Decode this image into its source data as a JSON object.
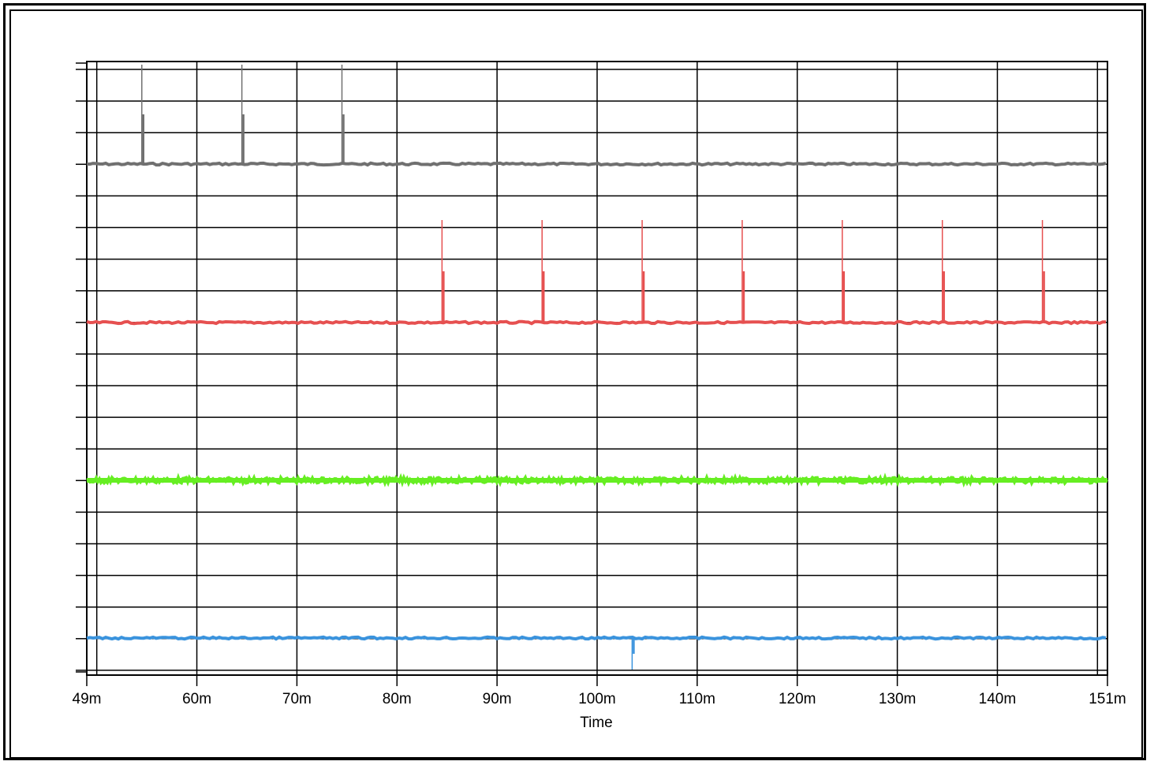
{
  "chart_data": {
    "type": "line",
    "title": "",
    "xlabel": "Time",
    "ylabel": "",
    "x_unit": "ms",
    "xlim": [
      49,
      151
    ],
    "x_ticks": [
      49,
      60,
      70,
      80,
      90,
      100,
      110,
      120,
      130,
      140,
      151
    ],
    "x_tick_labels": [
      "49m",
      "60m",
      "70m",
      "80m",
      "90m",
      "100m",
      "110m",
      "120m",
      "130m",
      "140m",
      "151m"
    ],
    "grid": true,
    "legend": "none",
    "series": [
      {
        "color": "#707070",
        "baseline_level": 3,
        "spike_times": [
          54.5,
          64.5,
          74.5
        ],
        "spike_height": 0.63,
        "spike_direction": "up"
      },
      {
        "color": "#e65050",
        "baseline_level": 2,
        "spike_times": [
          84.5,
          94.5,
          104.5,
          114.5,
          124.5,
          134.5,
          144.5
        ],
        "spike_height": 0.65,
        "spike_direction": "up"
      },
      {
        "color": "#66ee22",
        "baseline_level": 1,
        "spike_times": [],
        "spike_height": 0,
        "spike_direction": "none",
        "noise": "heavy"
      },
      {
        "color": "#3a93dd",
        "baseline_level": 0,
        "spike_times": [
          103.5
        ],
        "spike_height": 0.2,
        "spike_direction": "down"
      }
    ]
  }
}
